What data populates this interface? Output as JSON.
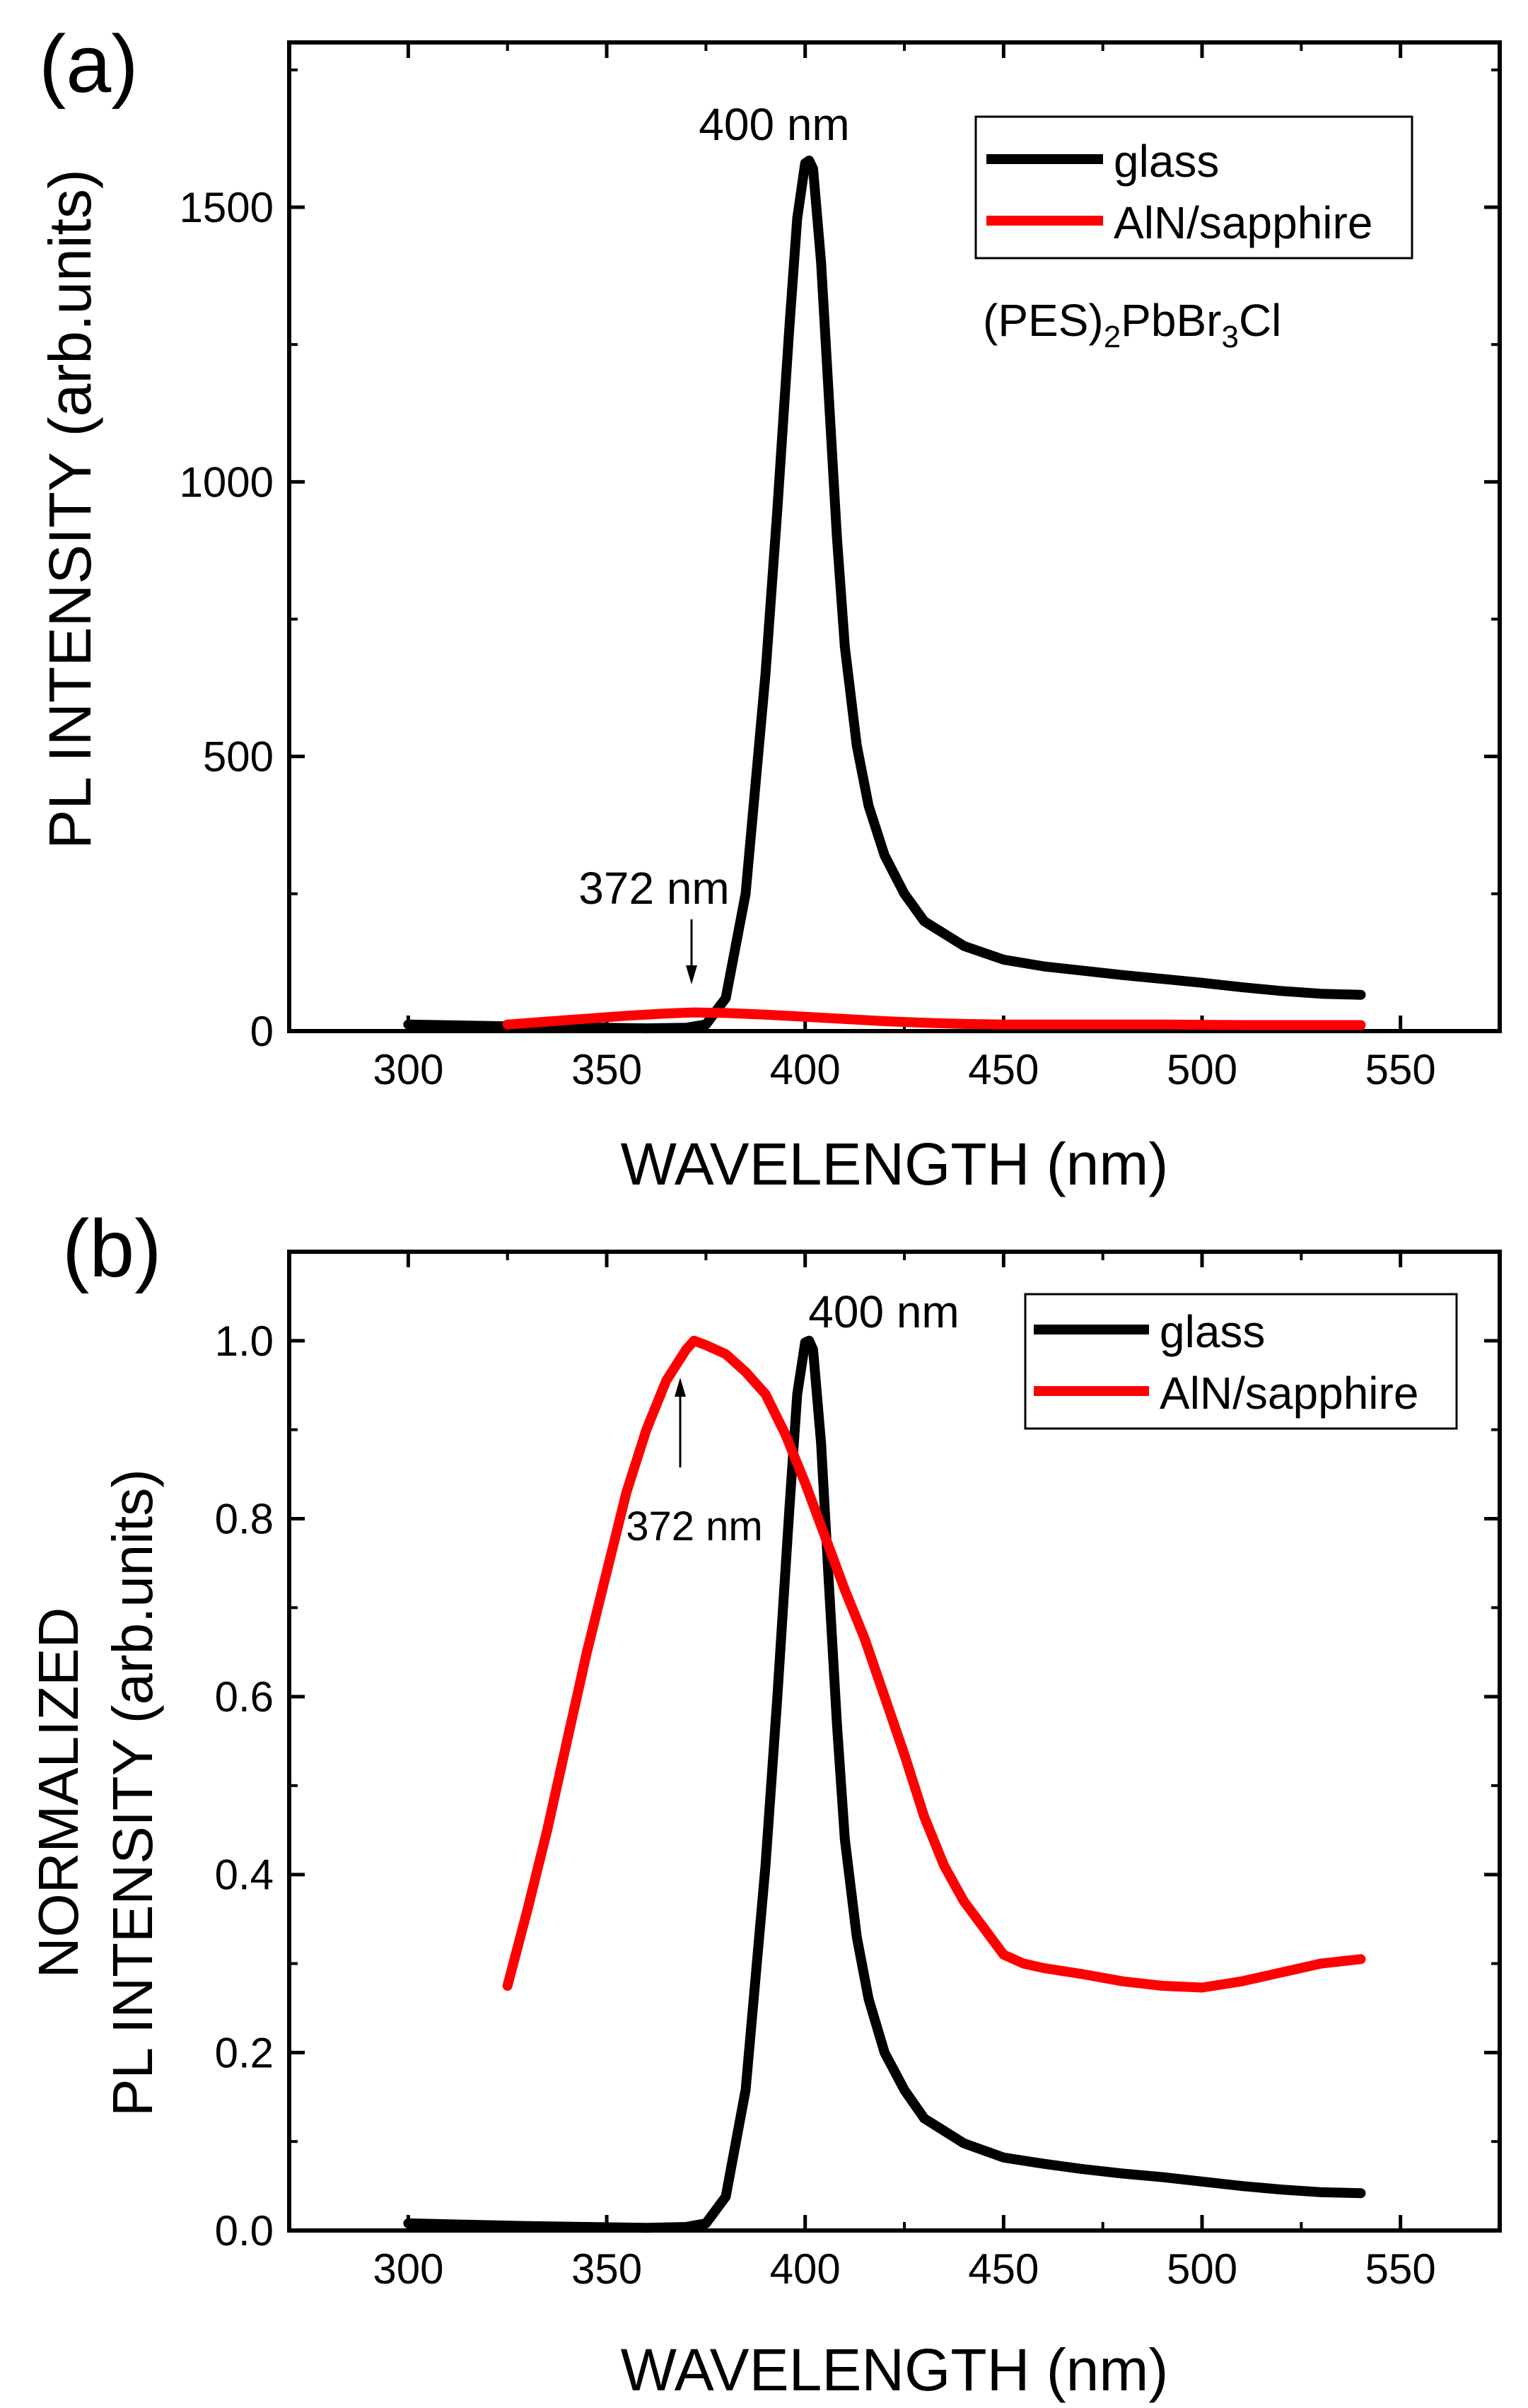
{
  "figure": {
    "panel_a": {
      "panel_label": "(a)",
      "peak_label_glass": "400 nm",
      "peak_label_aln": "372 nm",
      "sample_formula": {
        "base": "(PES)",
        "sub1": "2",
        "mid": "PbBr",
        "sub2": "3",
        "end": "Cl"
      }
    },
    "panel_b": {
      "panel_label": "(b)",
      "peak_label_glass": "400 nm",
      "peak_label_aln": "372 nm"
    }
  },
  "colors": {
    "glass": "#000000",
    "aln": "#ff0000"
  },
  "chart_data": [
    {
      "type": "line",
      "title": "(a)",
      "xlabel": "WAVELENGTH (nm)",
      "ylabel": "PL INTENSITY (arb.units)",
      "xlim": [
        270,
        575
      ],
      "ylim": [
        0,
        1800
      ],
      "xticks": [
        300,
        350,
        400,
        450,
        500,
        550
      ],
      "xtick_labels": [
        "300",
        "350",
        "400",
        "450",
        "500",
        "550"
      ],
      "yticks": [
        0,
        500,
        1000,
        1500
      ],
      "ytick_labels": [
        "0",
        "500",
        "1000",
        "1500"
      ],
      "legend_position": "top-right",
      "series": [
        {
          "name": "glass",
          "color": "#000000",
          "x": [
            300,
            330,
            360,
            370,
            375,
            380,
            385,
            390,
            393,
            396,
            398,
            400,
            401,
            402,
            404,
            406,
            408,
            410,
            413,
            416,
            420,
            425,
            430,
            440,
            450,
            460,
            470,
            480,
            490,
            500,
            510,
            520,
            530,
            540
          ],
          "y": [
            12,
            8,
            5,
            6,
            12,
            60,
            250,
            650,
            950,
            1280,
            1480,
            1580,
            1585,
            1570,
            1400,
            1150,
            900,
            700,
            520,
            410,
            320,
            250,
            200,
            155,
            130,
            118,
            110,
            102,
            95,
            88,
            80,
            73,
            68,
            66
          ]
        },
        {
          "name": "AlN/sapphire",
          "color": "#ff0000",
          "x": [
            325,
            340,
            355,
            365,
            372,
            380,
            390,
            400,
            410,
            420,
            430,
            440,
            450,
            470,
            490,
            510,
            540
          ],
          "y": [
            12,
            20,
            28,
            32,
            34,
            33,
            30,
            26,
            22,
            18,
            15,
            13,
            12,
            12,
            12,
            11,
            11
          ]
        }
      ]
    },
    {
      "type": "line",
      "title": "(b)",
      "xlabel": "WAVELENGTH (nm)",
      "ylabel_line1": "NORMALIZED",
      "ylabel_line2": "PL INTENSITY (arb.units)",
      "xlim": [
        270,
        575
      ],
      "ylim": [
        0,
        1.1
      ],
      "xticks": [
        300,
        350,
        400,
        450,
        500,
        550
      ],
      "xtick_labels": [
        "300",
        "350",
        "400",
        "450",
        "500",
        "550"
      ],
      "yticks": [
        0.0,
        0.2,
        0.4,
        0.6,
        0.8,
        1.0
      ],
      "ytick_labels": [
        "0.0",
        "0.2",
        "0.4",
        "0.6",
        "0.8",
        "1.0"
      ],
      "legend_position": "top-right",
      "series": [
        {
          "name": "glass",
          "color": "#000000",
          "x": [
            300,
            330,
            360,
            370,
            375,
            380,
            385,
            390,
            393,
            396,
            398,
            400,
            401,
            402,
            404,
            406,
            408,
            410,
            413,
            416,
            420,
            425,
            430,
            440,
            450,
            460,
            470,
            480,
            490,
            500,
            510,
            520,
            530,
            540
          ],
          "y": [
            0.008,
            0.005,
            0.003,
            0.004,
            0.008,
            0.038,
            0.158,
            0.41,
            0.6,
            0.81,
            0.94,
            0.998,
            1.0,
            0.99,
            0.885,
            0.725,
            0.57,
            0.44,
            0.33,
            0.26,
            0.2,
            0.158,
            0.126,
            0.098,
            0.082,
            0.075,
            0.069,
            0.064,
            0.06,
            0.055,
            0.05,
            0.046,
            0.043,
            0.042
          ]
        },
        {
          "name": "AlN/sapphire",
          "color": "#ff0000",
          "x": [
            325,
            330,
            335,
            340,
            345,
            350,
            355,
            360,
            365,
            370,
            372,
            375,
            380,
            385,
            390,
            395,
            400,
            405,
            410,
            415,
            420,
            425,
            430,
            435,
            440,
            445,
            450,
            455,
            460,
            470,
            480,
            490,
            500,
            510,
            520,
            530,
            540
          ],
          "y": [
            0.275,
            0.36,
            0.45,
            0.55,
            0.65,
            0.74,
            0.83,
            0.9,
            0.955,
            0.99,
            1.0,
            0.995,
            0.985,
            0.965,
            0.94,
            0.895,
            0.84,
            0.78,
            0.72,
            0.665,
            0.6,
            0.535,
            0.465,
            0.41,
            0.37,
            0.34,
            0.31,
            0.3,
            0.295,
            0.288,
            0.28,
            0.275,
            0.273,
            0.28,
            0.29,
            0.3,
            0.305
          ]
        }
      ]
    }
  ]
}
